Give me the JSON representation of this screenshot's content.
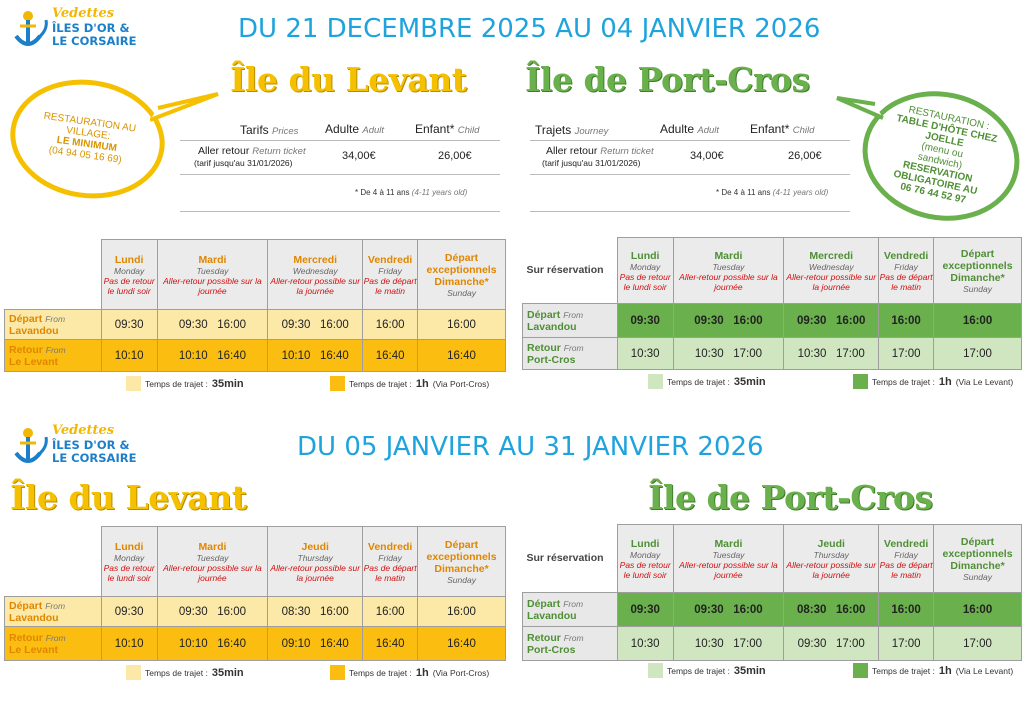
{
  "logo": {
    "vedettes": "Vedettes",
    "line1": "ÎLES D'OR &",
    "line2": "LE CORSAIRE"
  },
  "periods": [
    "DU 21 DECEMBRE 2025 AU 04 JANVIER 2026",
    "DU 05 JANVIER AU 31 JANVIER 2026"
  ],
  "islands": {
    "levant": "Île du Levant",
    "portcros": "Île de Port-Cros"
  },
  "bubble_levant": {
    "line1": "RESTAURATION AU",
    "line2": "VILLAGE:",
    "line3": "LE MINIMUM",
    "line4": "(04 94 05 16 69)"
  },
  "bubble_portcros": {
    "line1": "RESTAURATION :",
    "line2": "TABLE D'HÔTE CHEZ",
    "line3": "JOELLE",
    "line4": "(menu ou",
    "line5": "sandwich)",
    "line6": "RESERVATION",
    "line7": "OBLIGATOIRE AU",
    "line8": "06 76 44 52 97"
  },
  "prices_levant": {
    "col1": "Tarifs",
    "col1_en": "Prices",
    "adult": "Adulte",
    "adult_en": "Adult",
    "child": "Enfant",
    "child_en": "Child",
    "ticket": "Aller retour",
    "ticket_en": "Return ticket",
    "ticket_note": "(tarif jusqu'au 31/01/2026)",
    "adult_price": "34,00€",
    "child_price": "26,00€",
    "age_note": "* De 4 à 11 ans",
    "age_note_en": "(4-11 years old)"
  },
  "prices_portcros": {
    "col1": "Trajets",
    "col1_en": "Journey",
    "adult": "Adulte",
    "adult_en": "Adult",
    "child": "Enfant",
    "child_en": "Child",
    "ticket": "Aller retour",
    "ticket_en": "Return ticket",
    "ticket_note": "(tarif jusqu'au 31/01/2026)",
    "adult_price": "34,00€",
    "child_price": "26,00€",
    "age_note": "* De 4 à 11 ans",
    "age_note_en": "(4-11 years old)"
  },
  "sched1_levant": {
    "days": [
      {
        "fr": "Lundi",
        "en": "Monday",
        "note": "Pas de retour le lundi soir"
      },
      {
        "fr": "Mardi",
        "en": "Tuesday",
        "note": "Aller-retour possible sur la journée"
      },
      {
        "fr": "Mercredi",
        "en": "Wednesday",
        "note": "Aller-retour possible sur la journée"
      },
      {
        "fr": "Vendredi",
        "en": "Friday",
        "note": "Pas de départ le matin"
      },
      {
        "fr": "Départ exceptionnels Dimanche*",
        "en": "Sunday",
        "note": ""
      }
    ],
    "row1": {
      "label": "Départ",
      "label_en": "From",
      "place": "Lavandou",
      "times": [
        "09:30",
        "09:30   16:00",
        "09:30   16:00",
        "16:00",
        "16:00"
      ]
    },
    "row2": {
      "label": "Retour",
      "label_en": "From",
      "place": "Le Levant",
      "times": [
        "10:10",
        "10:10   16:40",
        "10:10   16:40",
        "16:40",
        "16:40"
      ]
    },
    "legend_light": "Temps de trajet : ",
    "legend_light_val": "35min",
    "legend_dark": "Temps de trajet : ",
    "legend_dark_val": "1h",
    "legend_dark_via": "(Via Port-Cros)"
  },
  "sched1_portcros": {
    "sur": "Sur réservation",
    "days": [
      {
        "fr": "Lundi",
        "en": "Monday",
        "note": "Pas de retour le lundi soir"
      },
      {
        "fr": "Mardi",
        "en": "Tuesday",
        "note": "Aller-retour possible sur la journée"
      },
      {
        "fr": "Mercredi",
        "en": "Wednesday",
        "note": "Aller-retour possible sur la journée"
      },
      {
        "fr": "Vendredi",
        "en": "Friday",
        "note": "Pas de départ le matin"
      },
      {
        "fr": "Départ exceptionnels Dimanche*",
        "en": "Sunday",
        "note": ""
      }
    ],
    "row1": {
      "label": "Départ",
      "label_en": "From",
      "place": "Lavandou",
      "times": [
        "09:30",
        "09:30   16:00",
        "09:30   16:00",
        "16:00",
        "16:00"
      ]
    },
    "row2": {
      "label": "Retour",
      "label_en": "From",
      "place": "Port-Cros",
      "times": [
        "10:30",
        "10:30   17:00",
        "10:30   17:00",
        "17:00",
        "17:00"
      ]
    },
    "legend_light": "Temps de trajet : ",
    "legend_light_val": "35min",
    "legend_dark": "Temps de trajet : ",
    "legend_dark_val": "1h",
    "legend_dark_via": "(Via Le Levant)"
  },
  "sched2_levant": {
    "days": [
      {
        "fr": "Lundi",
        "en": "Monday",
        "note": "Pas de retour le lundi soir"
      },
      {
        "fr": "Mardi",
        "en": "Tuesday",
        "note": "Aller-retour possible sur la journée"
      },
      {
        "fr": "Jeudi",
        "en": "Thursday",
        "note": "Aller-retour possible sur la journée"
      },
      {
        "fr": "Vendredi",
        "en": "Friday",
        "note": "Pas de départ le matin"
      },
      {
        "fr": "Départ exceptionnels Dimanche*",
        "en": "Sunday",
        "note": ""
      }
    ],
    "row1": {
      "label": "Départ",
      "label_en": "From",
      "place": "Lavandou",
      "times": [
        "09:30",
        "09:30   16:00",
        "08:30   16:00",
        "16:00",
        "16:00"
      ]
    },
    "row2": {
      "label": "Retour",
      "label_en": "From",
      "place": "Le Levant",
      "times": [
        "10:10",
        "10:10   16:40",
        "09:10   16:40",
        "16:40",
        "16:40"
      ]
    },
    "legend_light": "Temps de trajet : ",
    "legend_light_val": "35min",
    "legend_dark": "Temps de trajet : ",
    "legend_dark_val": "1h",
    "legend_dark_via": "(Via Port-Cros)"
  },
  "sched2_portcros": {
    "sur": "Sur réservation",
    "days": [
      {
        "fr": "Lundi",
        "en": "Monday",
        "note": "Pas de retour le lundi soir"
      },
      {
        "fr": "Mardi",
        "en": "Tuesday",
        "note": "Aller-retour possible sur la journée"
      },
      {
        "fr": "Jeudi",
        "en": "Thursday",
        "note": "Aller-retour possible sur la journée"
      },
      {
        "fr": "Vendredi",
        "en": "Friday",
        "note": "Pas de départ le matin"
      },
      {
        "fr": "Départ exceptionnels Dimanche*",
        "en": "Sunday",
        "note": ""
      }
    ],
    "row1": {
      "label": "Départ",
      "label_en": "From",
      "place": "Lavandou",
      "times": [
        "09:30",
        "09:30   16:00",
        "08:30   16:00",
        "16:00",
        "16:00"
      ]
    },
    "row2": {
      "label": "Retour",
      "label_en": "From",
      "place": "Port-Cros",
      "times": [
        "10:30",
        "10:30   17:00",
        "09:30   17:00",
        "17:00",
        "17:00"
      ]
    },
    "legend_light": "Temps de trajet : ",
    "legend_light_val": "35min",
    "legend_dark": "Temps de trajet : ",
    "legend_dark_val": "1h",
    "legend_dark_via": "(Via Le Levant)"
  },
  "colors": {
    "yellow_light": "#fce9a8",
    "yellow_dark": "#fbbd10",
    "green_dark": "#6ab04c",
    "green_light": "#cfe6c0",
    "title_blue": "#1fa3dc"
  }
}
